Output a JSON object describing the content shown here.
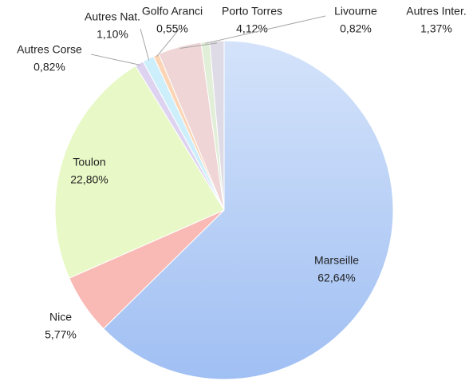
{
  "chart_data": {
    "type": "pie",
    "categories": [
      "Marseille",
      "Nice",
      "Toulon",
      "Autres Corse",
      "Autres Nat.",
      "Golfo Aranci",
      "Porto Torres",
      "Livourne",
      "Autres Inter."
    ],
    "values": [
      62.64,
      5.77,
      22.8,
      0.82,
      1.1,
      0.55,
      4.12,
      0.82,
      1.37
    ],
    "value_labels": [
      "62,64%",
      "5,77%",
      "22,80%",
      "0,82%",
      "1,10%",
      "0,55%",
      "4,12%",
      "0,82%",
      "1,37%"
    ],
    "colors": [
      "#b3cdf6",
      "#f9b9b4",
      "#e8f8c6",
      "#ddd3f0",
      "#cdeefb",
      "#fbd5b6",
      "#efd5d5",
      "#e1eed8",
      "#dfdbe6"
    ]
  }
}
